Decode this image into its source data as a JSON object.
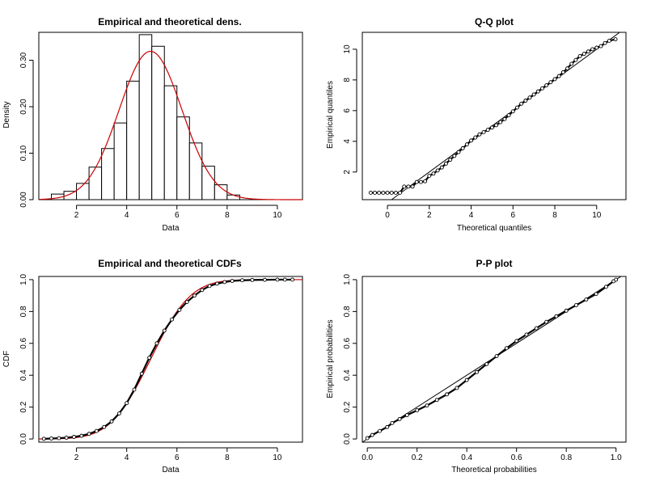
{
  "chart_data": [
    {
      "id": "dens",
      "type": "bar",
      "title": "Empirical and theoretical dens.",
      "xlabel": "Data",
      "ylabel": "Density",
      "xlim": [
        0.5,
        11
      ],
      "ylim": [
        0,
        0.36
      ],
      "xticks": [
        "2",
        "4",
        "6",
        "8",
        "10"
      ],
      "yticks": [
        "0.00",
        "0.10",
        "0.20",
        "0.30"
      ],
      "bins": [
        {
          "from": 1.0,
          "to": 1.5,
          "value": 0.012
        },
        {
          "from": 1.5,
          "to": 2.0,
          "value": 0.018
        },
        {
          "from": 2.0,
          "to": 2.5,
          "value": 0.035
        },
        {
          "from": 2.5,
          "to": 3.0,
          "value": 0.07
        },
        {
          "from": 3.0,
          "to": 3.5,
          "value": 0.11
        },
        {
          "from": 3.5,
          "to": 4.0,
          "value": 0.165
        },
        {
          "from": 4.0,
          "to": 4.5,
          "value": 0.255
        },
        {
          "from": 4.5,
          "to": 5.0,
          "value": 0.355
        },
        {
          "from": 5.0,
          "to": 5.5,
          "value": 0.33
        },
        {
          "from": 5.5,
          "to": 6.0,
          "value": 0.245
        },
        {
          "from": 6.0,
          "to": 6.5,
          "value": 0.178
        },
        {
          "from": 6.5,
          "to": 7.0,
          "value": 0.122
        },
        {
          "from": 7.0,
          "to": 7.5,
          "value": 0.072
        },
        {
          "from": 7.5,
          "to": 8.0,
          "value": 0.032
        },
        {
          "from": 8.0,
          "to": 8.5,
          "value": 0.01
        }
      ],
      "theoretical_curve": {
        "distribution": "normal",
        "mean": 4.95,
        "sd": 1.25,
        "color": "#cc0000"
      }
    },
    {
      "id": "qq",
      "type": "scatter",
      "title": "Q-Q plot",
      "xlabel": "Theoretical quantiles",
      "ylabel": "Empirical quantiles",
      "xlim": [
        -1.2,
        11.4
      ],
      "ylim": [
        0.2,
        11.1
      ],
      "xticks": [
        "0",
        "2",
        "4",
        "6",
        "8",
        "10"
      ],
      "yticks": [
        "2",
        "4",
        "6",
        "8",
        "10"
      ],
      "points": [
        [
          -0.8,
          0.65
        ],
        [
          -0.6,
          0.65
        ],
        [
          -0.4,
          0.65
        ],
        [
          -0.2,
          0.65
        ],
        [
          0.0,
          0.65
        ],
        [
          0.2,
          0.65
        ],
        [
          0.4,
          0.65
        ],
        [
          0.6,
          0.65
        ],
        [
          0.8,
          1.05
        ],
        [
          1.0,
          1.05
        ],
        [
          1.2,
          1.05
        ],
        [
          1.4,
          1.35
        ],
        [
          1.6,
          1.35
        ],
        [
          1.8,
          1.4
        ],
        [
          2.0,
          1.75
        ],
        [
          2.2,
          1.9
        ],
        [
          2.4,
          2.1
        ],
        [
          2.6,
          2.3
        ],
        [
          2.8,
          2.55
        ],
        [
          3.0,
          2.8
        ],
        [
          3.2,
          3.05
        ],
        [
          3.4,
          3.3
        ],
        [
          3.6,
          3.55
        ],
        [
          3.8,
          3.8
        ],
        [
          4.0,
          4.05
        ],
        [
          4.2,
          4.25
        ],
        [
          4.4,
          4.45
        ],
        [
          4.6,
          4.6
        ],
        [
          4.8,
          4.75
        ],
        [
          5.0,
          4.9
        ],
        [
          5.2,
          5.05
        ],
        [
          5.4,
          5.25
        ],
        [
          5.6,
          5.45
        ],
        [
          5.8,
          5.7
        ],
        [
          6.0,
          5.95
        ],
        [
          6.2,
          6.2
        ],
        [
          6.4,
          6.45
        ],
        [
          6.6,
          6.65
        ],
        [
          6.8,
          6.85
        ],
        [
          7.0,
          7.05
        ],
        [
          7.2,
          7.25
        ],
        [
          7.4,
          7.45
        ],
        [
          7.6,
          7.65
        ],
        [
          7.8,
          7.85
        ],
        [
          8.0,
          8.05
        ],
        [
          8.2,
          8.25
        ],
        [
          8.4,
          8.5
        ],
        [
          8.6,
          8.75
        ],
        [
          8.8,
          9.05
        ],
        [
          9.0,
          9.3
        ],
        [
          9.2,
          9.55
        ],
        [
          9.4,
          9.7
        ],
        [
          9.6,
          9.85
        ],
        [
          9.8,
          10.0
        ],
        [
          10.0,
          10.1
        ],
        [
          10.2,
          10.2
        ],
        [
          10.4,
          10.4
        ],
        [
          10.6,
          10.55
        ],
        [
          10.9,
          10.65
        ]
      ],
      "reference_line": "y=x"
    },
    {
      "id": "cdf",
      "type": "line",
      "title": "Empirical and theoretical CDFs",
      "xlabel": "Data",
      "ylabel": "CDF",
      "xlim": [
        0.5,
        11
      ],
      "ylim": [
        -0.02,
        1.02
      ],
      "xticks": [
        "2",
        "4",
        "6",
        "8",
        "10"
      ],
      "yticks": [
        "0.0",
        "0.2",
        "0.4",
        "0.6",
        "0.8",
        "1.0"
      ],
      "empirical_points": [
        [
          0.7,
          0.001
        ],
        [
          1.0,
          0.003
        ],
        [
          1.3,
          0.005
        ],
        [
          1.6,
          0.008
        ],
        [
          1.9,
          0.013
        ],
        [
          2.2,
          0.02
        ],
        [
          2.5,
          0.032
        ],
        [
          2.8,
          0.05
        ],
        [
          3.1,
          0.075
        ],
        [
          3.4,
          0.11
        ],
        [
          3.7,
          0.16
        ],
        [
          4.0,
          0.225
        ],
        [
          4.3,
          0.31
        ],
        [
          4.6,
          0.41
        ],
        [
          4.9,
          0.51
        ],
        [
          5.2,
          0.6
        ],
        [
          5.5,
          0.68
        ],
        [
          5.8,
          0.75
        ],
        [
          6.1,
          0.81
        ],
        [
          6.4,
          0.86
        ],
        [
          6.7,
          0.9
        ],
        [
          7.0,
          0.935
        ],
        [
          7.3,
          0.96
        ],
        [
          7.6,
          0.975
        ],
        [
          7.9,
          0.985
        ],
        [
          8.2,
          0.992
        ],
        [
          8.6,
          0.996
        ],
        [
          9.0,
          0.998
        ],
        [
          9.5,
          0.999
        ],
        [
          10.0,
          1.0
        ],
        [
          10.3,
          1.0
        ],
        [
          10.6,
          1.0
        ]
      ],
      "theoretical_curve": {
        "distribution": "normal",
        "mean": 4.95,
        "sd": 1.25,
        "color": "#cc0000"
      }
    },
    {
      "id": "pp",
      "type": "scatter",
      "title": "P-P plot",
      "xlabel": "Theoretical probabilities",
      "ylabel": "Empirical probabilities",
      "xlim": [
        -0.02,
        1.04
      ],
      "ylim": [
        -0.02,
        1.02
      ],
      "xticks": [
        "0.0",
        "0.2",
        "0.4",
        "0.6",
        "0.8",
        "1.0"
      ],
      "yticks": [
        "0.0",
        "0.2",
        "0.4",
        "0.6",
        "0.8",
        "1.0"
      ],
      "points": [
        [
          0.0,
          0.005
        ],
        [
          0.02,
          0.025
        ],
        [
          0.05,
          0.05
        ],
        [
          0.08,
          0.075
        ],
        [
          0.1,
          0.1
        ],
        [
          0.13,
          0.125
        ],
        [
          0.16,
          0.15
        ],
        [
          0.2,
          0.18
        ],
        [
          0.24,
          0.21
        ],
        [
          0.28,
          0.245
        ],
        [
          0.32,
          0.28
        ],
        [
          0.36,
          0.32
        ],
        [
          0.4,
          0.37
        ],
        [
          0.44,
          0.42
        ],
        [
          0.48,
          0.47
        ],
        [
          0.52,
          0.52
        ],
        [
          0.56,
          0.57
        ],
        [
          0.6,
          0.615
        ],
        [
          0.64,
          0.655
        ],
        [
          0.68,
          0.695
        ],
        [
          0.72,
          0.735
        ],
        [
          0.76,
          0.77
        ],
        [
          0.8,
          0.805
        ],
        [
          0.84,
          0.84
        ],
        [
          0.88,
          0.875
        ],
        [
          0.92,
          0.91
        ],
        [
          0.96,
          0.955
        ],
        [
          0.99,
          0.99
        ],
        [
          1.0,
          1.0
        ]
      ],
      "reference_line": "y=x"
    }
  ]
}
